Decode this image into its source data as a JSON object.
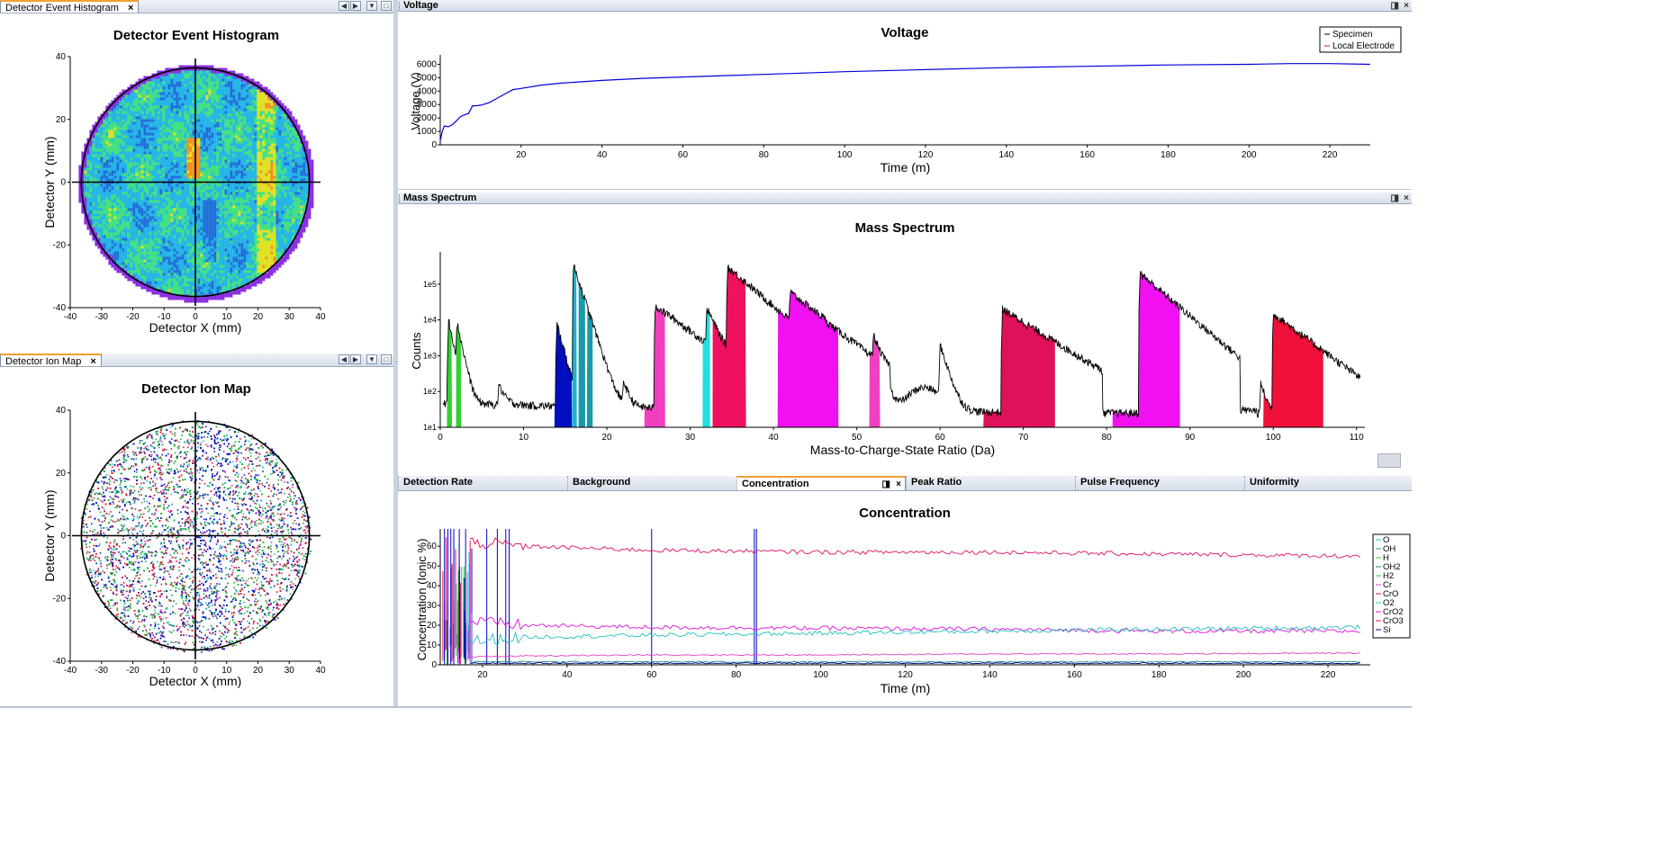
{
  "panels": {
    "histogram": {
      "tab": "Detector Event Histogram",
      "close": "×",
      "title": "Detector Event Histogram",
      "xlabel": "Detector X (mm)",
      "ylabel": "Detector Y (mm)"
    },
    "ionmap": {
      "tab": "Detector Ion Map",
      "close": "×",
      "title": "Detector Ion Map",
      "xlabel": "Detector X (mm)",
      "ylabel": "Detector Y (mm)"
    },
    "voltage": {
      "header": "Voltage",
      "title": "Voltage",
      "xlabel": "Time (m)",
      "ylabel": "Voltage (V)"
    },
    "mass": {
      "header": "Mass Spectrum",
      "title": "Mass Spectrum",
      "xlabel": "Mass-to-Charge-State Ratio (Da)",
      "ylabel": "Counts"
    },
    "concentration": {
      "title": "Concentration",
      "xlabel": "Time (m)",
      "ylabel": "Concentration (Ionic %)"
    }
  },
  "bottom_tabs": [
    "Detection Rate",
    "Background",
    "Concentration",
    "Peak Ratio",
    "Pulse Frequency",
    "Uniformity"
  ],
  "controls": {
    "close": "×",
    "pin": "◨",
    "prev": "◀",
    "next": "▶",
    "menu": "▼",
    "max": "□"
  },
  "chart_data": [
    {
      "type": "heatmap",
      "title": "Detector Event Histogram",
      "xlabel": "Detector X (mm)",
      "ylabel": "Detector Y (mm)",
      "xlim": [
        -40,
        40
      ],
      "ylim": [
        -40,
        40
      ],
      "xticks": [
        "-40",
        "-30",
        "-20",
        "-10",
        "0",
        "10",
        "20",
        "30",
        "40"
      ],
      "yticks": [
        "40",
        "20",
        "0",
        "-20",
        "-40"
      ],
      "colors": {
        "low": "#1e6fd8",
        "mid": "#22b4e6",
        "high": "#e0e020",
        "rim": "#8a2be2"
      }
    },
    {
      "type": "scatter",
      "title": "Detector Ion Map",
      "xlabel": "Detector X (mm)",
      "ylabel": "Detector Y (mm)",
      "xlim": [
        -40,
        40
      ],
      "ylim": [
        -40,
        40
      ],
      "xticks": [
        "-40",
        "-30",
        "-20",
        "-10",
        "0",
        "10",
        "20",
        "30",
        "40"
      ],
      "yticks": [
        "40",
        "20",
        "0",
        "-20",
        "-40"
      ],
      "colors": [
        "#20b040",
        "#1020c0",
        "#d02040",
        "#20c0c0",
        "#d040d0"
      ]
    },
    {
      "type": "line",
      "title": "Voltage",
      "xlabel": "Time (m)",
      "ylabel": "Voltage (V)",
      "xlim": [
        0,
        230
      ],
      "ylim": [
        0,
        6500
      ],
      "xticks": [
        "20",
        "40",
        "60",
        "80",
        "100",
        "120",
        "140",
        "160",
        "180",
        "200",
        "220"
      ],
      "yticks": [
        "0",
        "1000",
        "2000",
        "3000",
        "4000",
        "5000",
        "6000"
      ],
      "legend": [
        {
          "name": "Specimen",
          "color": "#000000"
        },
        {
          "name": "Local Electrode",
          "color": "#d01020"
        }
      ],
      "series": [
        {
          "name": "Specimen",
          "color": "#0000dd",
          "x": [
            0,
            0.5,
            1,
            2,
            3,
            4,
            5,
            6,
            7,
            8,
            9,
            10,
            12,
            14,
            16,
            18,
            20,
            25,
            30,
            35,
            40,
            50,
            60,
            70,
            80,
            90,
            100,
            120,
            140,
            160,
            180,
            200,
            210,
            220,
            230
          ],
          "y": [
            300,
            1000,
            1400,
            1350,
            1500,
            1800,
            2100,
            2200,
            2300,
            2900,
            2900,
            2950,
            3100,
            3400,
            3800,
            4050,
            4200,
            4450,
            4600,
            4700,
            4800,
            4950,
            5050,
            5150,
            5250,
            5350,
            5450,
            5600,
            5750,
            5850,
            5950,
            6000,
            6050,
            6050,
            6000
          ]
        }
      ]
    },
    {
      "type": "area",
      "title": "Mass Spectrum",
      "xlabel": "Mass-to-Charge-State Ratio (Da)",
      "ylabel": "Counts",
      "xlim": [
        0,
        111
      ],
      "ylim": [
        10,
        500000
      ],
      "yscale": "log",
      "xticks": [
        "0",
        "10",
        "20",
        "30",
        "40",
        "50",
        "60",
        "70",
        "80",
        "90",
        "100",
        "110"
      ],
      "yticks": [
        "1e1",
        "1e2",
        "1e3",
        "1e4",
        "1e5"
      ],
      "peaks": [
        {
          "pos": 1.0,
          "height": 10000,
          "baseline": 60,
          "decay": 0.4
        },
        {
          "pos": 2.0,
          "height": 8000,
          "baseline": 60,
          "decay": 0.4
        },
        {
          "pos": 7.0,
          "height": 120,
          "baseline": 40,
          "decay": 0.6
        },
        {
          "pos": 14.0,
          "height": 8000,
          "baseline": 35,
          "decay": 0.5
        },
        {
          "pos": 16.0,
          "height": 350000,
          "baseline": 60,
          "decay": 0.6
        },
        {
          "pos": 17.0,
          "height": 3000,
          "baseline": 60,
          "decay": 0.6
        },
        {
          "pos": 18.0,
          "height": 400,
          "baseline": 60,
          "decay": 0.6
        },
        {
          "pos": 22.0,
          "height": 150,
          "baseline": 70,
          "decay": 0.5
        },
        {
          "pos": 25.8,
          "height": 25000,
          "baseline": 80,
          "decay": 2.5
        },
        {
          "pos": 32.0,
          "height": 20000,
          "baseline": 100,
          "decay": 0.8
        },
        {
          "pos": 34.5,
          "height": 300000,
          "baseline": 120,
          "decay": 2.2
        },
        {
          "pos": 42.0,
          "height": 50000,
          "baseline": 100,
          "decay": 2.5
        },
        {
          "pos": 52.0,
          "height": 3000,
          "baseline": 90,
          "decay": 0.5
        },
        {
          "pos": 60.0,
          "height": 2000,
          "baseline": 100,
          "decay": 0.6
        },
        {
          "pos": 67.5,
          "height": 20000,
          "baseline": 80,
          "decay": 3.0
        },
        {
          "pos": 84.0,
          "height": 200000,
          "baseline": 80,
          "decay": 2.2
        },
        {
          "pos": 98.5,
          "height": 150,
          "baseline": 40,
          "decay": 0.5
        },
        {
          "pos": 100.0,
          "height": 15000,
          "baseline": 40,
          "decay": 2.5
        }
      ],
      "ranges": [
        {
          "from": 0.8,
          "to": 1.4,
          "color": "#30d030"
        },
        {
          "from": 1.9,
          "to": 2.5,
          "color": "#30d030"
        },
        {
          "from": 13.7,
          "to": 15.8,
          "color": "#0010c0"
        },
        {
          "from": 15.8,
          "to": 16.4,
          "color": "#20b0d0"
        },
        {
          "from": 16.6,
          "to": 17.4,
          "color": "#1a9aa8"
        },
        {
          "from": 17.6,
          "to": 18.3,
          "color": "#1a9aa8"
        },
        {
          "from": 24.5,
          "to": 27.0,
          "color": "#f040c0"
        },
        {
          "from": 31.5,
          "to": 32.4,
          "color": "#20e0e0"
        },
        {
          "from": 32.7,
          "to": 36.7,
          "color": "#f01060"
        },
        {
          "from": 40.5,
          "to": 47.8,
          "color": "#f010f0"
        },
        {
          "from": 51.5,
          "to": 52.8,
          "color": "#f040c0"
        },
        {
          "from": 65.2,
          "to": 73.8,
          "color": "#e0105a"
        },
        {
          "from": 80.7,
          "to": 88.8,
          "color": "#f010f0"
        },
        {
          "from": 98.8,
          "to": 106.0,
          "color": "#f0103a"
        }
      ]
    },
    {
      "type": "line",
      "title": "Concentration",
      "xlabel": "Time (m)",
      "ylabel": "Concentration (Ionic %)",
      "xlim": [
        10,
        230
      ],
      "ylim": [
        0,
        66
      ],
      "xticks": [
        "20",
        "40",
        "60",
        "80",
        "100",
        "120",
        "140",
        "160",
        "180",
        "200",
        "220"
      ],
      "yticks": [
        "0",
        "10",
        "20",
        "30",
        "40",
        "50",
        "60"
      ],
      "legend": [
        {
          "name": "O",
          "color": "#20c0c0"
        },
        {
          "name": "OH",
          "color": "#209090"
        },
        {
          "name": "H",
          "color": "#30c030"
        },
        {
          "name": "OH2",
          "color": "#108870"
        },
        {
          "name": "H2",
          "color": "#30c030"
        },
        {
          "name": "Cr",
          "color": "#e040c0"
        },
        {
          "name": "CrO",
          "color": "#e01060"
        },
        {
          "name": "O2",
          "color": "#20c0c0"
        },
        {
          "name": "CrO2",
          "color": "#e010e0"
        },
        {
          "name": "CrO3",
          "color": "#e01050"
        },
        {
          "name": "Si",
          "color": "#000080"
        }
      ],
      "series": [
        {
          "name": "CrO",
          "color": "#e01060",
          "x": [
            17,
            30,
            60,
            100,
            140,
            180,
            228
          ],
          "y": [
            62,
            60,
            58,
            57,
            57,
            56,
            55
          ]
        },
        {
          "name": "CrO2",
          "color": "#e010e0",
          "x": [
            17,
            30,
            60,
            100,
            140,
            180,
            228
          ],
          "y": [
            22,
            20,
            19,
            18.5,
            18,
            17,
            17
          ]
        },
        {
          "name": "O",
          "color": "#20c0c0",
          "x": [
            17,
            30,
            60,
            100,
            140,
            180,
            228
          ],
          "y": [
            12,
            14,
            15,
            16,
            17,
            18,
            19
          ]
        },
        {
          "name": "Cr",
          "color": "#e040c0",
          "x": [
            17,
            30,
            60,
            100,
            140,
            180,
            228
          ],
          "y": [
            4,
            4.5,
            5,
            5,
            5.5,
            5.5,
            6
          ]
        },
        {
          "name": "OH",
          "color": "#209090",
          "x": [
            17,
            228
          ],
          "y": [
            1.5,
            1.5
          ]
        },
        {
          "name": "Si",
          "color": "#000080",
          "x": [
            17,
            228
          ],
          "y": [
            0.8,
            0.8
          ]
        }
      ],
      "vlines": [
        11,
        11.8,
        12.5,
        13.2,
        14.5,
        16,
        21,
        23.5,
        25.5,
        26.3,
        60,
        84.3,
        84.8
      ]
    }
  ]
}
